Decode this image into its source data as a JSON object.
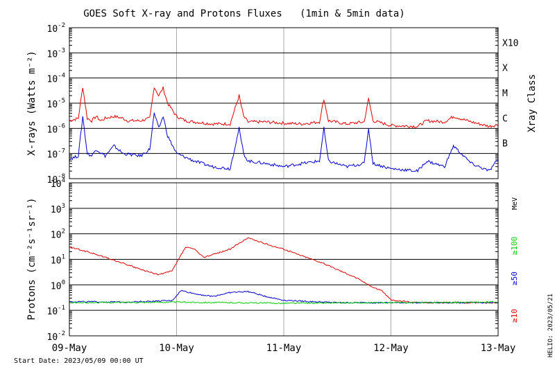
{
  "title": "GOES Soft X-ray and Protons Fluxes   (1min & 5min data)",
  "start_date": "Start Date: 2023/05/09 00:00 UT",
  "credit": "HELIO: 2023/05/21",
  "colors": {
    "xray_long": "#dd0000",
    "xray_short": "#0000cc",
    "p10": "#dd0000",
    "p50": "#0000cc",
    "p100": "#00cc00",
    "grid": "#000000",
    "vgrid": "#aaaaaa"
  },
  "chart_data": [
    {
      "type": "line",
      "title": "GOES Soft X-ray Flux",
      "ylabel": "X-rays (Watts m⁻²)",
      "y_scale": "log",
      "ylim": [
        1e-08,
        0.01
      ],
      "y_ticks": [
        {
          "base": "10",
          "exp": "-8"
        },
        {
          "base": "10",
          "exp": "-7"
        },
        {
          "base": "10",
          "exp": "-6"
        },
        {
          "base": "10",
          "exp": "-5"
        },
        {
          "base": "10",
          "exp": "-4"
        },
        {
          "base": "10",
          "exp": "-3"
        },
        {
          "base": "10",
          "exp": "-2"
        }
      ],
      "right_axis_label": "Xray Class",
      "classes": [
        {
          "label": "B",
          "flux": 1e-07
        },
        {
          "label": "C",
          "flux": 1e-06
        },
        {
          "label": "M",
          "flux": 1e-05
        },
        {
          "label": "X",
          "flux": 0.0001
        },
        {
          "label": "X10",
          "flux": 0.001
        }
      ],
      "xlim": [
        "2023-05-09",
        "2023-05-13"
      ],
      "series": [
        {
          "name": "",
          "color": "#dd0000",
          "x": [
            "2023-05-09 00:00",
            "2023-05-09 02:00",
            "2023-05-09 03:00",
            "2023-05-09 04:00",
            "2023-05-09 05:00",
            "2023-05-09 06:00",
            "2023-05-09 07:00",
            "2023-05-09 08:00",
            "2023-05-09 10:00",
            "2023-05-09 12:00",
            "2023-05-09 13:00",
            "2023-05-09 16:00",
            "2023-05-09 18:00",
            "2023-05-09 19:00",
            "2023-05-09 20:00",
            "2023-05-09 21:00",
            "2023-05-09 22:00",
            "2023-05-10 00:00",
            "2023-05-10 02:00",
            "2023-05-10 04:00",
            "2023-05-10 08:00",
            "2023-05-10 12:00",
            "2023-05-10 14:00",
            "2023-05-10 15:00",
            "2023-05-10 16:00",
            "2023-05-10 20:00",
            "2023-05-11 00:00",
            "2023-05-11 04:00",
            "2023-05-11 08:00",
            "2023-05-11 09:00",
            "2023-05-11 10:00",
            "2023-05-11 14:00",
            "2023-05-11 18:00",
            "2023-05-11 19:00",
            "2023-05-11 20:00",
            "2023-05-12 00:00",
            "2023-05-12 06:00",
            "2023-05-12 08:00",
            "2023-05-12 12:00",
            "2023-05-12 14:00",
            "2023-05-12 18:00",
            "2023-05-12 22:00",
            "2023-05-13 00:00"
          ],
          "values": [
            2e-06,
            2.5e-06,
            4.5e-05,
            2.5e-06,
            2e-06,
            3e-06,
            2e-06,
            2.5e-06,
            3e-06,
            2.5e-06,
            2e-06,
            2e-06,
            2.5e-06,
            4.5e-05,
            2e-05,
            4e-05,
            1e-05,
            3e-06,
            2e-06,
            1.8e-06,
            1.5e-06,
            1.5e-06,
            2e-05,
            3e-06,
            1.8e-06,
            1.8e-06,
            1.6e-06,
            1.5e-06,
            1.8e-06,
            1.5e-05,
            2e-06,
            1.5e-06,
            1.8e-06,
            1.5e-05,
            2e-06,
            1.3e-06,
            1.2e-06,
            2e-06,
            1.8e-06,
            3e-06,
            1.8e-06,
            1.2e-06,
            1.4e-06
          ]
        },
        {
          "name": "",
          "color": "#0000cc",
          "x": [
            "2023-05-09 00:00",
            "2023-05-09 02:00",
            "2023-05-09 03:00",
            "2023-05-09 04:00",
            "2023-05-09 05:00",
            "2023-05-09 06:00",
            "2023-05-09 08:00",
            "2023-05-09 10:00",
            "2023-05-09 12:00",
            "2023-05-09 16:00",
            "2023-05-09 18:00",
            "2023-05-09 19:00",
            "2023-05-09 20:00",
            "2023-05-09 21:00",
            "2023-05-09 22:00",
            "2023-05-10 00:00",
            "2023-05-10 04:00",
            "2023-05-10 08:00",
            "2023-05-10 12:00",
            "2023-05-10 14:00",
            "2023-05-10 15:00",
            "2023-05-10 16:00",
            "2023-05-10 20:00",
            "2023-05-11 00:00",
            "2023-05-11 04:00",
            "2023-05-11 08:00",
            "2023-05-11 09:00",
            "2023-05-11 10:00",
            "2023-05-11 14:00",
            "2023-05-11 18:00",
            "2023-05-11 19:00",
            "2023-05-11 20:00",
            "2023-05-12 00:00",
            "2023-05-12 06:00",
            "2023-05-12 08:00",
            "2023-05-12 12:00",
            "2023-05-12 14:00",
            "2023-05-12 18:00",
            "2023-05-12 22:00",
            "2023-05-13 00:00"
          ],
          "values": [
            6e-08,
            8e-08,
            3e-06,
            1e-07,
            8e-08,
            1.5e-07,
            8e-08,
            2e-07,
            1e-07,
            8e-08,
            1.5e-07,
            4e-06,
            1e-06,
            3e-06,
            5e-07,
            1e-07,
            5e-08,
            3e-08,
            2.5e-08,
            1e-06,
            1e-07,
            5e-08,
            4e-08,
            3e-08,
            4e-08,
            5e-08,
            1e-06,
            5e-08,
            3e-08,
            4e-08,
            1e-06,
            4e-08,
            2.5e-08,
            2e-08,
            5e-08,
            3e-08,
            2e-07,
            4e-08,
            2e-08,
            6e-08
          ]
        }
      ]
    },
    {
      "type": "line",
      "title": "GOES Proton Flux",
      "ylabel": "Protons (cm⁻²s⁻¹sr⁻¹)",
      "y_scale": "log",
      "ylim": [
        0.01,
        10000
      ],
      "y_ticks": [
        {
          "base": "10",
          "exp": "-2"
        },
        {
          "base": "10",
          "exp": "-1"
        },
        {
          "base": "10",
          "exp": "0"
        },
        {
          "base": "10",
          "exp": "1"
        },
        {
          "base": "10",
          "exp": "2"
        },
        {
          "base": "10",
          "exp": "3"
        },
        {
          "base": "10",
          "exp": "4"
        }
      ],
      "threshold": 10,
      "right_axis_label": "MeV",
      "xlim": [
        "2023-05-09",
        "2023-05-13"
      ],
      "x_ticks": [
        "09-May",
        "10-May",
        "11-May",
        "12-May",
        "13-May"
      ],
      "series": [
        {
          "name": "≥10",
          "color": "#dd0000",
          "x": [
            "2023-05-09 00:00",
            "2023-05-09 04:00",
            "2023-05-09 08:00",
            "2023-05-09 12:00",
            "2023-05-09 16:00",
            "2023-05-09 20:00",
            "2023-05-09 23:00",
            "2023-05-10 02:00",
            "2023-05-10 04:00",
            "2023-05-10 06:00",
            "2023-05-10 12:00",
            "2023-05-10 16:00",
            "2023-05-10 20:00",
            "2023-05-11 00:00",
            "2023-05-11 04:00",
            "2023-05-11 08:00",
            "2023-05-11 12:00",
            "2023-05-11 16:00",
            "2023-05-11 20:00",
            "2023-05-11 22:00",
            "2023-05-12 00:00",
            "2023-05-12 06:00",
            "2023-05-12 12:00",
            "2023-05-13 00:00"
          ],
          "values": [
            30,
            20,
            12,
            7,
            4,
            2.5,
            3.5,
            30,
            25,
            12,
            25,
            70,
            40,
            25,
            14,
            8,
            4,
            2,
            0.8,
            0.6,
            0.25,
            0.2,
            0.2,
            0.2
          ]
        },
        {
          "name": "≥50",
          "color": "#0000cc",
          "x": [
            "2023-05-09 00:00",
            "2023-05-09 12:00",
            "2023-05-09 23:00",
            "2023-05-10 01:00",
            "2023-05-10 04:00",
            "2023-05-10 08:00",
            "2023-05-10 12:00",
            "2023-05-10 16:00",
            "2023-05-10 20:00",
            "2023-05-11 00:00",
            "2023-05-11 06:00",
            "2023-05-11 12:00",
            "2023-05-12 00:00",
            "2023-05-13 00:00"
          ],
          "values": [
            0.22,
            0.21,
            0.24,
            0.6,
            0.45,
            0.35,
            0.5,
            0.55,
            0.35,
            0.25,
            0.22,
            0.2,
            0.2,
            0.2
          ]
        },
        {
          "name": "≥100",
          "color": "#00cc00",
          "x": [
            "2023-05-09 00:00",
            "2023-05-10 00:00",
            "2023-05-11 00:00",
            "2023-05-12 00:00",
            "2023-05-13 00:00"
          ],
          "values": [
            0.2,
            0.21,
            0.19,
            0.2,
            0.21
          ]
        }
      ]
    }
  ]
}
